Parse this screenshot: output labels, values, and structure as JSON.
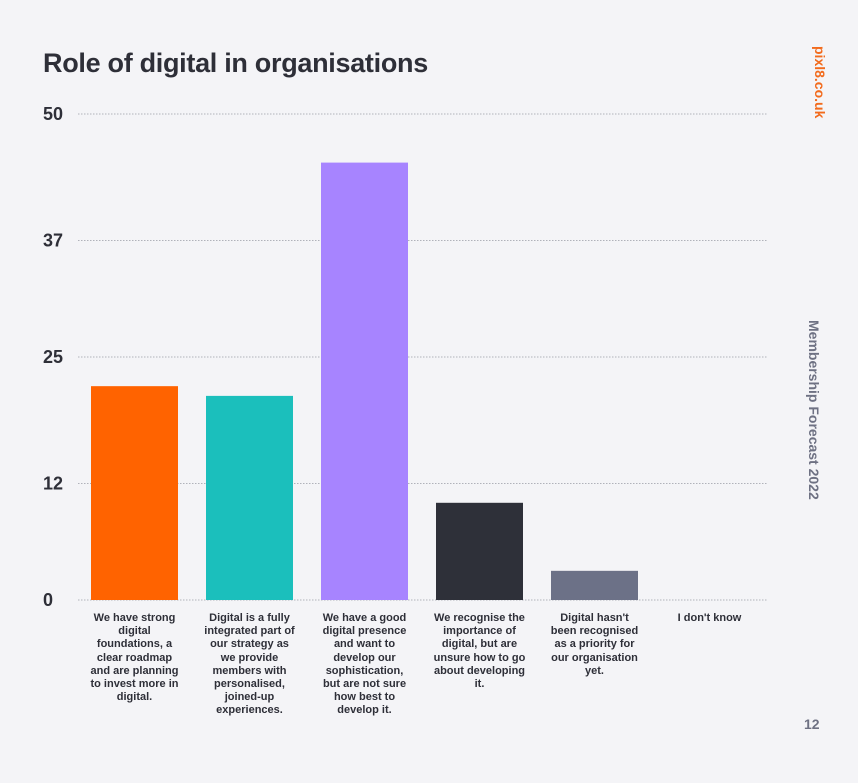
{
  "page": {
    "title": "Role of digital in organisations",
    "brand": "pixl8.co.uk",
    "report": "Membership Forecast 2022",
    "page_number": "12"
  },
  "chart_data": {
    "type": "bar",
    "title": "Role of digital in organisations",
    "xlabel": "",
    "ylabel": "",
    "ylim": [
      0,
      50
    ],
    "yticks": [
      "0",
      "12",
      "25",
      "37",
      "50"
    ],
    "grid": true,
    "categories": [
      "We have strong digital foundations, a clear roadmap and are planning to invest more in digital.",
      "Digital is a fully integrated part of our strategy as we provide members with personalised, joined-up experiences.",
      "We have a good digital presence and want to develop our sophistication, but are not sure how best to develop it.",
      "We recognise the importance of digital, but are unsure how to go about developing it.",
      "Digital hasn't been recognised as a priority for our organisation yet.",
      "I don't know"
    ],
    "values": [
      22,
      21,
      45,
      10,
      3,
      0
    ],
    "colors": [
      "#ff6300",
      "#1bbfbc",
      "#a784ff",
      "#2e3039",
      "#6c7187",
      "#6c7187"
    ]
  }
}
